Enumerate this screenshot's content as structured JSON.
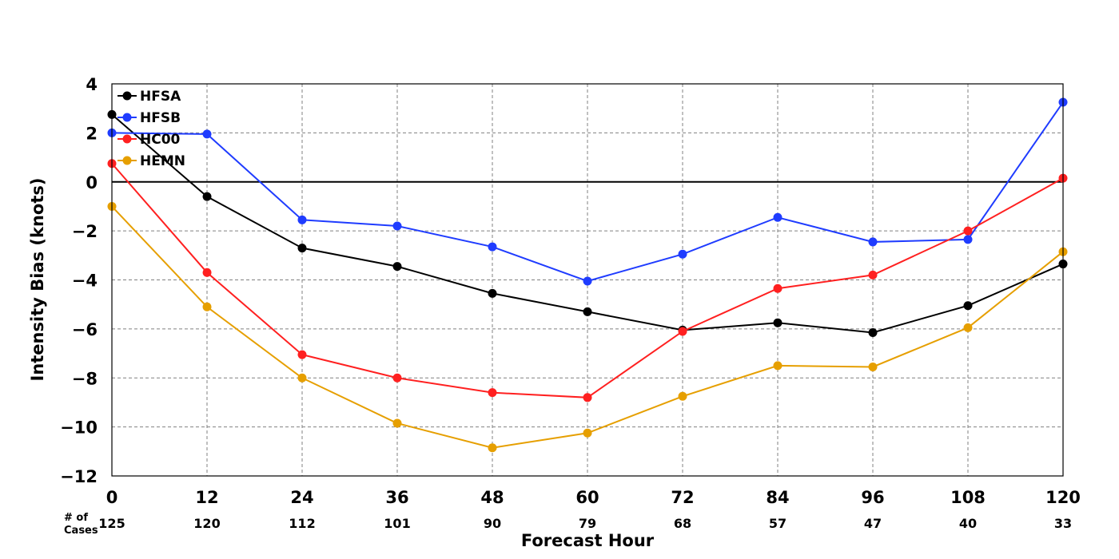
{
  "chart_data": {
    "type": "line",
    "title": "",
    "xlabel": "Forecast Hour",
    "ylabel": "Intensity Bias (knots)",
    "x": [
      0,
      12,
      24,
      36,
      48,
      60,
      72,
      84,
      96,
      108,
      120
    ],
    "xlim": [
      0,
      120
    ],
    "ylim": [
      -12,
      4
    ],
    "xticks": [
      0,
      12,
      24,
      36,
      48,
      60,
      72,
      84,
      96,
      108,
      120
    ],
    "yticks": [
      4,
      2,
      0,
      -2,
      -4,
      -6,
      -8,
      -10,
      -12
    ],
    "ytick_labels": [
      "4",
      "2",
      "0",
      "−2",
      "−4",
      "−6",
      "−8",
      "−10",
      "−12"
    ],
    "grid": true,
    "zero_line": true,
    "legend_position": "top-left",
    "cases_label": [
      "# of",
      "Cases"
    ],
    "cases": [
      "125",
      "120",
      "112",
      "101",
      "90",
      "79",
      "68",
      "57",
      "47",
      "40",
      "33"
    ],
    "series": [
      {
        "name": "HFSA",
        "color": "#000000",
        "values": [
          2.75,
          -0.6,
          -2.7,
          -3.45,
          -4.55,
          -5.3,
          -6.05,
          -5.75,
          -6.15,
          -5.05,
          -3.35
        ]
      },
      {
        "name": "HFSB",
        "color": "#1f3cff",
        "values": [
          2.0,
          1.95,
          -1.55,
          -1.8,
          -2.65,
          -4.05,
          -2.95,
          -1.45,
          -2.45,
          -2.35,
          3.25
        ]
      },
      {
        "name": "HC00",
        "color": "#ff2020",
        "values": [
          0.75,
          -3.7,
          -7.05,
          -8.0,
          -8.6,
          -8.8,
          -6.1,
          -4.35,
          -3.8,
          -2.0,
          0.15
        ]
      },
      {
        "name": "HEMN",
        "color": "#e69f00",
        "values": [
          -1.0,
          -5.1,
          -8.0,
          -9.85,
          -10.85,
          -10.25,
          -8.75,
          -7.5,
          -7.55,
          -5.95,
          -2.85
        ]
      }
    ]
  }
}
